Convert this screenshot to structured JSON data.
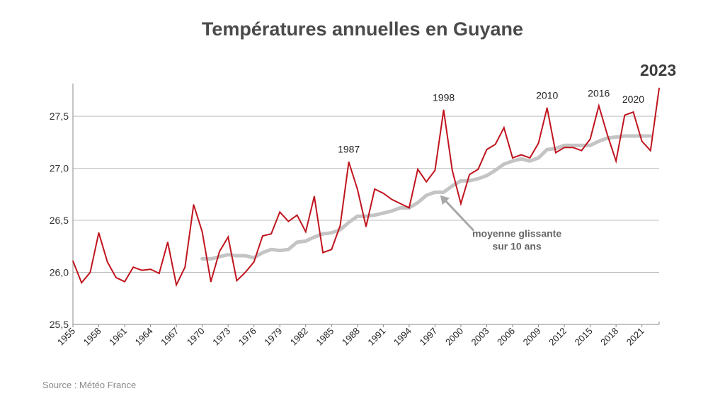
{
  "title": "Températures annuelles en Guyane",
  "highlight_year": "2023",
  "source": "Source : Météo France",
  "chart_data": {
    "type": "line",
    "title": "Températures annuelles en Guyane",
    "xlabel": "",
    "ylabel": "",
    "xlim": [
      1955,
      2023
    ],
    "ylim": [
      25.5,
      27.8
    ],
    "y_ticks": [
      "25,5",
      "26,0",
      "26,5",
      "27,0",
      "27,5"
    ],
    "y_tick_values": [
      25.5,
      26.0,
      26.5,
      27.0,
      27.5
    ],
    "x_ticks": [
      "1955",
      "1958",
      "1961",
      "1964",
      "1967",
      "1970",
      "1973",
      "1976",
      "1979",
      "1982",
      "1985",
      "1988",
      "1991",
      "1994",
      "1997",
      "2000",
      "2003",
      "2006",
      "2009",
      "2012",
      "2015",
      "2018",
      "2021"
    ],
    "grid": "horizontal",
    "colors": {
      "annual": "#c0141e",
      "moving_average": "#c4c4c4"
    },
    "series": [
      {
        "name": "",
        "x": [
          1955,
          1956,
          1957,
          1958,
          1959,
          1960,
          1961,
          1962,
          1963,
          1964,
          1965,
          1966,
          1967,
          1968,
          1969,
          1970,
          1971,
          1972,
          1973,
          1974,
          1975,
          1976,
          1977,
          1978,
          1979,
          1980,
          1981,
          1982,
          1983,
          1984,
          1985,
          1986,
          1987,
          1988,
          1989,
          1990,
          1991,
          1992,
          1993,
          1994,
          1995,
          1996,
          1997,
          1998,
          1999,
          2000,
          2001,
          2002,
          2003,
          2004,
          2005,
          2006,
          2007,
          2008,
          2009,
          2010,
          2011,
          2012,
          2013,
          2014,
          2015,
          2016,
          2017,
          2018,
          2019,
          2020,
          2021,
          2022,
          2023
        ],
        "y": [
          26.11,
          25.9,
          26.0,
          26.38,
          26.1,
          25.95,
          25.91,
          26.05,
          26.02,
          26.03,
          25.99,
          26.29,
          25.88,
          26.05,
          26.65,
          26.39,
          25.91,
          26.2,
          26.34,
          25.92,
          26.0,
          26.1,
          26.35,
          26.37,
          26.58,
          26.49,
          26.55,
          26.39,
          26.73,
          26.19,
          26.22,
          26.45,
          27.06,
          26.8,
          26.44,
          26.8,
          26.76,
          26.7,
          26.66,
          26.62,
          26.99,
          26.87,
          26.98,
          27.56,
          26.98,
          26.66,
          26.94,
          26.99,
          27.18,
          27.23,
          27.39,
          27.1,
          27.13,
          27.1,
          27.24,
          27.58,
          27.15,
          27.2,
          27.2,
          27.17,
          27.28,
          27.6,
          27.32,
          27.07,
          27.51,
          27.54,
          27.26,
          27.17,
          27.77
        ]
      },
      {
        "name": "moyenne glissante sur 10 ans",
        "x": [
          1970,
          1971,
          1972,
          1973,
          1974,
          1975,
          1976,
          1977,
          1978,
          1979,
          1980,
          1981,
          1982,
          1983,
          1984,
          1985,
          1986,
          1987,
          1988,
          1989,
          1990,
          1991,
          1992,
          1993,
          1994,
          1995,
          1996,
          1997,
          1998,
          1999,
          2000,
          2001,
          2002,
          2003,
          2004,
          2005,
          2006,
          2007,
          2008,
          2009,
          2010,
          2011,
          2012,
          2013,
          2014,
          2015,
          2016,
          2017,
          2018,
          2019,
          2020,
          2021,
          2022
        ],
        "y": [
          26.13,
          26.13,
          26.15,
          26.17,
          26.16,
          26.16,
          26.14,
          26.19,
          26.22,
          26.21,
          26.22,
          26.29,
          26.3,
          26.34,
          26.37,
          26.38,
          26.41,
          26.48,
          26.54,
          26.54,
          26.55,
          26.57,
          26.59,
          26.62,
          26.62,
          26.67,
          26.74,
          26.77,
          26.77,
          26.83,
          26.88,
          26.88,
          26.9,
          26.93,
          26.98,
          27.04,
          27.07,
          27.09,
          27.07,
          27.1,
          27.18,
          27.19,
          27.22,
          27.22,
          27.22,
          27.22,
          27.26,
          27.29,
          27.3,
          27.31,
          27.31,
          27.31,
          27.31
        ]
      }
    ],
    "annotations": [
      {
        "text": "1987",
        "x": 1987,
        "y": 27.06
      },
      {
        "text": "1998",
        "x": 1998,
        "y": 27.56
      },
      {
        "text": "2010",
        "x": 2010,
        "y": 27.58
      },
      {
        "text": "2016",
        "x": 2016,
        "y": 27.6
      },
      {
        "text": "2020",
        "x": 2020,
        "y": 27.54
      }
    ],
    "moving_average_label": [
      "moyenne glissante",
      "sur 10 ans"
    ],
    "moving_average_arrow": {
      "from_year": 2001.5,
      "from_value": 26.4,
      "to_year": 1997.6,
      "to_value": 26.74
    }
  }
}
